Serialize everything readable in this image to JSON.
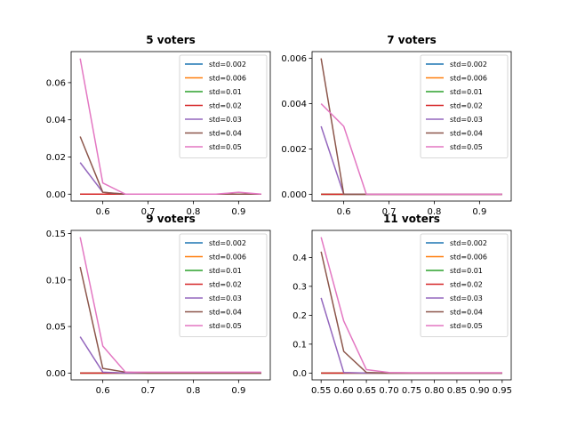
{
  "chart_data": [
    {
      "type": "line",
      "title": "5 voters",
      "xlabel": "",
      "ylabel": "",
      "xlim": [
        0.53,
        0.97
      ],
      "ylim": [
        -0.0037,
        0.0767
      ],
      "xticks": [
        0.6,
        0.7,
        0.8,
        0.9
      ],
      "xtick_labels": [
        "0.6",
        "0.7",
        "0.8",
        "0.9"
      ],
      "yticks": [
        0.0,
        0.02,
        0.04,
        0.06
      ],
      "ytick_labels": [
        "0.00",
        "0.02",
        "0.04",
        "0.06"
      ],
      "legend_position": "upper right",
      "x": [
        0.55,
        0.6,
        0.65,
        0.7,
        0.75,
        0.8,
        0.85,
        0.9,
        0.95
      ],
      "series": [
        {
          "name": "std=0.002",
          "color": "#1f77b4",
          "values": [
            0,
            0,
            0,
            0,
            0,
            0,
            0,
            0,
            0
          ]
        },
        {
          "name": "std=0.006",
          "color": "#ff7f0e",
          "values": [
            0,
            0,
            0,
            0,
            0,
            0,
            0,
            0,
            0
          ]
        },
        {
          "name": "std=0.01",
          "color": "#2ca02c",
          "values": [
            0,
            0,
            0,
            0,
            0,
            0,
            0,
            0,
            0
          ]
        },
        {
          "name": "std=0.02",
          "color": "#d62728",
          "values": [
            0,
            0,
            0,
            0,
            0,
            0,
            0,
            0,
            0
          ]
        },
        {
          "name": "std=0.03",
          "color": "#9467bd",
          "values": [
            0.017,
            0.001,
            0,
            0,
            0,
            0,
            0,
            0,
            0
          ]
        },
        {
          "name": "std=0.04",
          "color": "#8c564b",
          "values": [
            0.031,
            0.001,
            0,
            0,
            0,
            0,
            0,
            0,
            0
          ]
        },
        {
          "name": "std=0.05",
          "color": "#e377c2",
          "values": [
            0.073,
            0.006,
            0,
            0,
            0,
            0,
            0,
            0.001,
            0
          ]
        }
      ]
    },
    {
      "type": "line",
      "title": "7 voters",
      "xlabel": "",
      "ylabel": "",
      "xlim": [
        0.53,
        0.97
      ],
      "ylim": [
        -0.0003,
        0.0063
      ],
      "xticks": [
        0.6,
        0.7,
        0.8,
        0.9
      ],
      "xtick_labels": [
        "0.6",
        "0.7",
        "0.8",
        "0.9"
      ],
      "yticks": [
        0.0,
        0.002,
        0.004,
        0.006
      ],
      "ytick_labels": [
        "0.000",
        "0.002",
        "0.004",
        "0.006"
      ],
      "legend_position": "upper right",
      "x": [
        0.55,
        0.6,
        0.65,
        0.7,
        0.75,
        0.8,
        0.85,
        0.9,
        0.95
      ],
      "series": [
        {
          "name": "std=0.002",
          "color": "#1f77b4",
          "values": [
            0,
            0,
            0,
            0,
            0,
            0,
            0,
            0,
            0
          ]
        },
        {
          "name": "std=0.006",
          "color": "#ff7f0e",
          "values": [
            0,
            0,
            0,
            0,
            0,
            0,
            0,
            0,
            0
          ]
        },
        {
          "name": "std=0.01",
          "color": "#2ca02c",
          "values": [
            0,
            0,
            0,
            0,
            0,
            0,
            0,
            0,
            0
          ]
        },
        {
          "name": "std=0.02",
          "color": "#d62728",
          "values": [
            0,
            0,
            0,
            0,
            0,
            0,
            0,
            0,
            0
          ]
        },
        {
          "name": "std=0.03",
          "color": "#9467bd",
          "values": [
            0.003,
            0,
            0,
            0,
            0,
            0,
            0,
            0,
            0
          ]
        },
        {
          "name": "std=0.04",
          "color": "#8c564b",
          "values": [
            0.006,
            0,
            0,
            0,
            0,
            0,
            0,
            0,
            0
          ]
        },
        {
          "name": "std=0.05",
          "color": "#e377c2",
          "values": [
            0.004,
            0.003,
            0,
            0,
            0,
            0,
            0,
            0,
            0
          ]
        }
      ]
    },
    {
      "type": "line",
      "title": "9 voters",
      "xlabel": "",
      "ylabel": "",
      "xlim": [
        0.53,
        0.97
      ],
      "ylim": [
        -0.0073,
        0.1533
      ],
      "xticks": [
        0.6,
        0.7,
        0.8,
        0.9
      ],
      "xtick_labels": [
        "0.6",
        "0.7",
        "0.8",
        "0.9"
      ],
      "yticks": [
        0.0,
        0.05,
        0.1,
        0.15
      ],
      "ytick_labels": [
        "0.00",
        "0.05",
        "0.10",
        "0.15"
      ],
      "legend_position": "upper right",
      "x": [
        0.55,
        0.6,
        0.65,
        0.7,
        0.75,
        0.8,
        0.85,
        0.9,
        0.95
      ],
      "series": [
        {
          "name": "std=0.002",
          "color": "#1f77b4",
          "values": [
            0,
            0,
            0,
            0,
            0,
            0,
            0,
            0,
            0
          ]
        },
        {
          "name": "std=0.006",
          "color": "#ff7f0e",
          "values": [
            0,
            0,
            0,
            0,
            0,
            0,
            0,
            0,
            0
          ]
        },
        {
          "name": "std=0.01",
          "color": "#2ca02c",
          "values": [
            0,
            0,
            0,
            0,
            0,
            0,
            0,
            0,
            0
          ]
        },
        {
          "name": "std=0.02",
          "color": "#d62728",
          "values": [
            0,
            0,
            0,
            0,
            0,
            0,
            0,
            0,
            0
          ]
        },
        {
          "name": "std=0.03",
          "color": "#9467bd",
          "values": [
            0.039,
            0.001,
            0,
            0,
            0,
            0,
            0,
            0,
            0
          ]
        },
        {
          "name": "std=0.04",
          "color": "#8c564b",
          "values": [
            0.114,
            0.005,
            0.001,
            0,
            0,
            0,
            0,
            0,
            0
          ]
        },
        {
          "name": "std=0.05",
          "color": "#e377c2",
          "values": [
            0.146,
            0.029,
            0.001,
            0.001,
            0.001,
            0.001,
            0.001,
            0.001,
            0.001
          ]
        }
      ]
    },
    {
      "type": "line",
      "title": "11 voters",
      "xlabel": "",
      "ylabel": "",
      "xlim": [
        0.53,
        0.97
      ],
      "ylim": [
        -0.0235,
        0.4935
      ],
      "xticks": [
        0.55,
        0.6,
        0.65,
        0.7,
        0.75,
        0.8,
        0.85,
        0.9,
        0.95
      ],
      "xtick_labels": [
        "0.55",
        "0.60",
        "0.65",
        "0.70",
        "0.75",
        "0.80",
        "0.85",
        "0.90",
        "0.95"
      ],
      "yticks": [
        0.0,
        0.1,
        0.2,
        0.3,
        0.4
      ],
      "ytick_labels": [
        "0.0",
        "0.1",
        "0.2",
        "0.3",
        "0.4"
      ],
      "legend_position": "upper right",
      "x": [
        0.55,
        0.6,
        0.65,
        0.7,
        0.75,
        0.8,
        0.85,
        0.9,
        0.95
      ],
      "series": [
        {
          "name": "std=0.002",
          "color": "#1f77b4",
          "values": [
            0,
            0,
            0,
            0,
            0,
            0,
            0,
            0,
            0
          ]
        },
        {
          "name": "std=0.006",
          "color": "#ff7f0e",
          "values": [
            0,
            0,
            0,
            0,
            0,
            0,
            0,
            0,
            0
          ]
        },
        {
          "name": "std=0.01",
          "color": "#2ca02c",
          "values": [
            0,
            0,
            0,
            0,
            0,
            0,
            0,
            0,
            0
          ]
        },
        {
          "name": "std=0.02",
          "color": "#d62728",
          "values": [
            0,
            0,
            0,
            0,
            0,
            0,
            0,
            0,
            0
          ]
        },
        {
          "name": "std=0.03",
          "color": "#9467bd",
          "values": [
            0.26,
            0.002,
            0,
            0,
            0,
            0,
            0,
            0,
            0
          ]
        },
        {
          "name": "std=0.04",
          "color": "#8c564b",
          "values": [
            0.42,
            0.075,
            0.002,
            0,
            0,
            0,
            0,
            0,
            0
          ]
        },
        {
          "name": "std=0.05",
          "color": "#e377c2",
          "values": [
            0.47,
            0.18,
            0.012,
            0.002,
            0.001,
            0.001,
            0.001,
            0.001,
            0.001
          ]
        }
      ]
    }
  ]
}
